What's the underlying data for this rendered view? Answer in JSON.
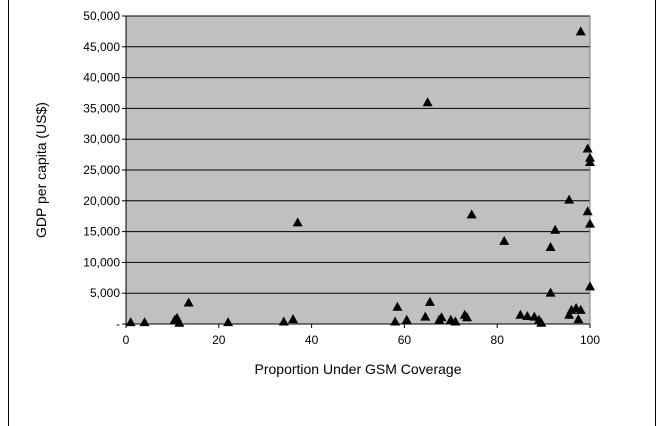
{
  "chart_data": {
    "type": "scatter",
    "title": "",
    "xlabel": "Proportion Under GSM Coverage",
    "ylabel": "GDP per capita (US$)",
    "xlim": [
      0,
      100
    ],
    "ylim": [
      0,
      50000
    ],
    "x_ticks": [
      0,
      20,
      40,
      60,
      80,
      100
    ],
    "x_tick_labels": [
      "0",
      "20",
      "40",
      "60",
      "80",
      "100"
    ],
    "y_ticks": [
      0,
      5000,
      10000,
      15000,
      20000,
      25000,
      30000,
      35000,
      40000,
      45000,
      50000
    ],
    "y_tick_labels": [
      "-",
      "5,000",
      "10,000",
      "15,000",
      "20,000",
      "25,000",
      "30,000",
      "35,000",
      "40,000",
      "45,000",
      "50,000"
    ],
    "grid": true,
    "marker": "triangle",
    "colors": {
      "plot_background": "#c0c0c0",
      "marker": "#000000",
      "gridline": "#000000"
    },
    "points": [
      {
        "x": 1,
        "y": 300
      },
      {
        "x": 4,
        "y": 300
      },
      {
        "x": 10.5,
        "y": 700
      },
      {
        "x": 11,
        "y": 1000
      },
      {
        "x": 11.5,
        "y": 200
      },
      {
        "x": 13.5,
        "y": 3500
      },
      {
        "x": 22,
        "y": 300
      },
      {
        "x": 34,
        "y": 400
      },
      {
        "x": 36,
        "y": 800
      },
      {
        "x": 37,
        "y": 16500
      },
      {
        "x": 58,
        "y": 400
      },
      {
        "x": 58.5,
        "y": 2800
      },
      {
        "x": 60.5,
        "y": 700
      },
      {
        "x": 64.5,
        "y": 1200
      },
      {
        "x": 65,
        "y": 36000
      },
      {
        "x": 65.5,
        "y": 3600
      },
      {
        "x": 67.5,
        "y": 700
      },
      {
        "x": 68,
        "y": 1100
      },
      {
        "x": 70,
        "y": 700
      },
      {
        "x": 71,
        "y": 400
      },
      {
        "x": 73,
        "y": 1500
      },
      {
        "x": 73.5,
        "y": 1100
      },
      {
        "x": 74.5,
        "y": 17800
      },
      {
        "x": 81.5,
        "y": 13500
      },
      {
        "x": 85,
        "y": 1500
      },
      {
        "x": 86.5,
        "y": 1300
      },
      {
        "x": 88,
        "y": 1200
      },
      {
        "x": 89,
        "y": 700
      },
      {
        "x": 89.5,
        "y": 200
      },
      {
        "x": 91.5,
        "y": 12500
      },
      {
        "x": 91.5,
        "y": 5100
      },
      {
        "x": 92.5,
        "y": 15300
      },
      {
        "x": 95.5,
        "y": 20200
      },
      {
        "x": 95.5,
        "y": 1500
      },
      {
        "x": 96,
        "y": 2300
      },
      {
        "x": 97,
        "y": 2600
      },
      {
        "x": 97.5,
        "y": 800
      },
      {
        "x": 98,
        "y": 47500
      },
      {
        "x": 98,
        "y": 2300
      },
      {
        "x": 99.5,
        "y": 28500
      },
      {
        "x": 99.5,
        "y": 18300
      },
      {
        "x": 100,
        "y": 27000
      },
      {
        "x": 100,
        "y": 26300
      },
      {
        "x": 100,
        "y": 16300
      },
      {
        "x": 100,
        "y": 6100
      }
    ]
  }
}
